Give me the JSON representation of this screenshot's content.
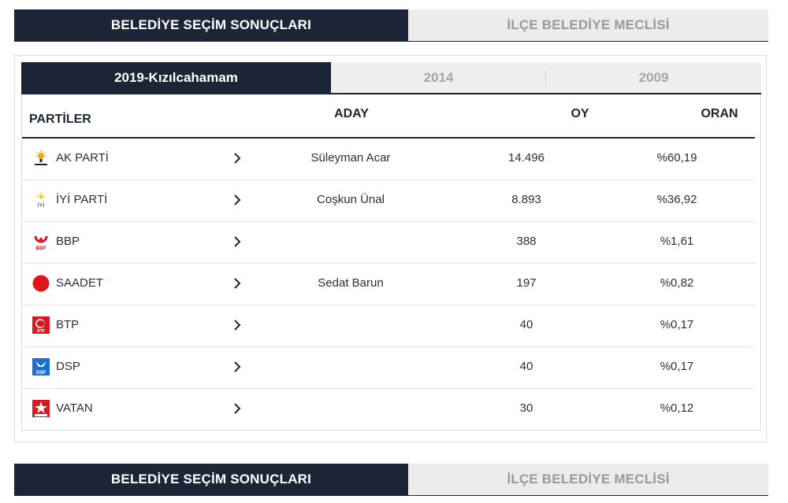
{
  "top_tabs": {
    "active": "BELEDİYE SEÇİM SONUÇLARI",
    "inactive": "İLÇE BELEDİYE MECLİSİ"
  },
  "year_tabs": [
    "2019-Kızılcahamam",
    "2014",
    "2009"
  ],
  "table": {
    "headers": {
      "party": "PARTİLER",
      "candidate": "ADAY",
      "votes": "OY",
      "ratio": "ORAN"
    },
    "rows": [
      {
        "party": "AK PARTİ",
        "candidate": "Süleyman Acar",
        "votes": "14.496",
        "ratio": "%60,19",
        "logo": "akp-logo-icon"
      },
      {
        "party": "İYİ PARTİ",
        "candidate": "Coşkun Ünal",
        "votes": "8.893",
        "ratio": "%36,92",
        "logo": "iyi-logo-icon"
      },
      {
        "party": "BBP",
        "candidate": "",
        "votes": "388",
        "ratio": "%1,61",
        "logo": "bbp-logo-icon"
      },
      {
        "party": "SAADET",
        "candidate": "Sedat Barun",
        "votes": "197",
        "ratio": "%0,82",
        "logo": "saadet-logo-icon"
      },
      {
        "party": "BTP",
        "candidate": "",
        "votes": "40",
        "ratio": "%0,17",
        "logo": "btp-logo-icon"
      },
      {
        "party": "DSP",
        "candidate": "",
        "votes": "40",
        "ratio": "%0,17",
        "logo": "dsp-logo-icon"
      },
      {
        "party": "VATAN",
        "candidate": "",
        "votes": "30",
        "ratio": "%0,12",
        "logo": "vatan-logo-icon"
      }
    ]
  },
  "bottom_tabs": {
    "active": "BELEDİYE SEÇİM SONUÇLARI",
    "inactive": "İLÇE BELEDİYE MECLİSİ"
  }
}
